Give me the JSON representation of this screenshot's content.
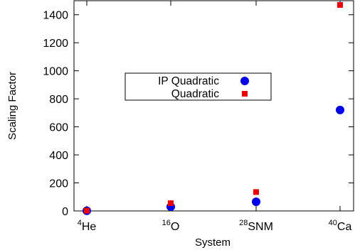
{
  "chart_data": {
    "type": "scatter",
    "xlabel": "System",
    "ylabel": "Scaling Factor",
    "categories": [
      {
        "sup": "4",
        "base": "He"
      },
      {
        "sup": "16",
        "base": "O"
      },
      {
        "sup": "28",
        "base": "SNM"
      },
      {
        "sup": "40",
        "base": "Ca"
      }
    ],
    "ylim": [
      0,
      1500
    ],
    "yticks": [
      0,
      200,
      400,
      600,
      800,
      1000,
      1200,
      1400
    ],
    "grid": false,
    "legend_position": "center-left",
    "series": [
      {
        "name": "IP Quadratic",
        "marker": "circle",
        "color": "#0000ee",
        "values": [
          1,
          30,
          65,
          720
        ]
      },
      {
        "name": "Quadratic",
        "marker": "square",
        "color": "#ee0000",
        "values": [
          2,
          55,
          135,
          1470
        ]
      }
    ]
  }
}
